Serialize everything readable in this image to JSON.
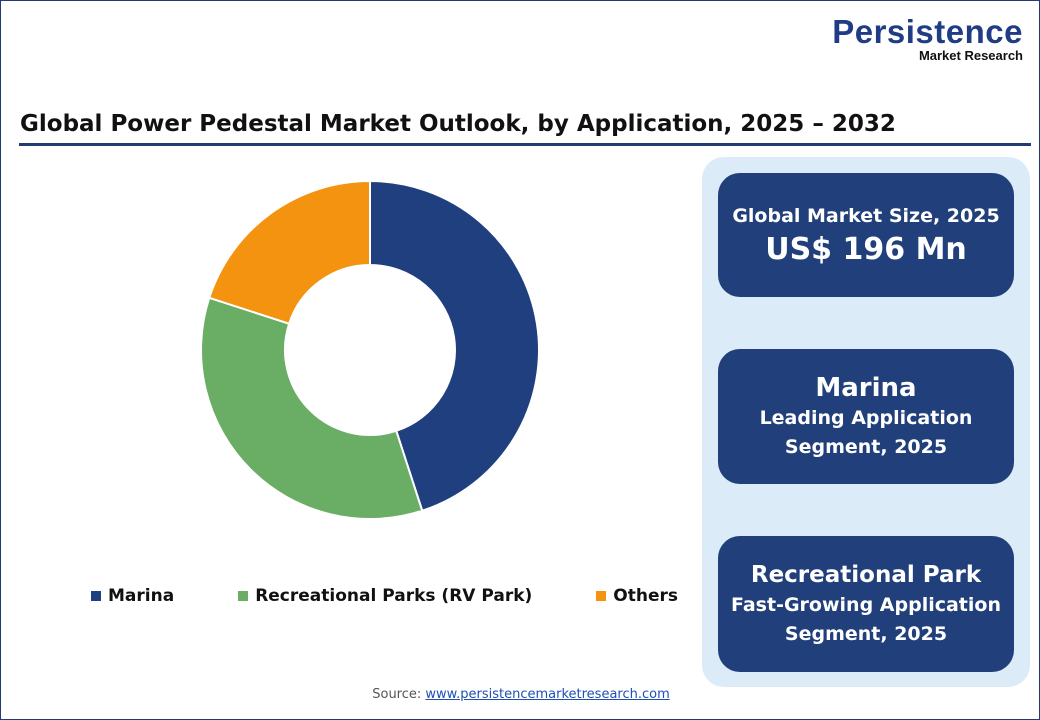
{
  "logo": {
    "line1": "Persistence",
    "line2": "Market Research"
  },
  "title": "Global Power Pedestal Market Outlook, by Application, 2025 – 2032",
  "chart_data": {
    "type": "pie",
    "donut": true,
    "categories": [
      "Marina",
      "Recreational Parks (RV Park)",
      "Others"
    ],
    "values": [
      45,
      35,
      20
    ],
    "unit": "%",
    "colors": [
      "#1f3f7f",
      "#6aad64",
      "#f3930f"
    ],
    "legend_position": "bottom"
  },
  "cards": [
    {
      "line1": "Global Market Size, 2025",
      "line2": "US$ 196 Mn"
    },
    {
      "line1": "Marina",
      "line2": "Leading Application",
      "line3": "Segment, 2025"
    },
    {
      "line1": "Recreational Park",
      "line2": "Fast-Growing Application",
      "line3": "Segment, 2025"
    }
  ],
  "source": {
    "label": "Source:",
    "link": "www.persistencemarketresearch.com"
  }
}
